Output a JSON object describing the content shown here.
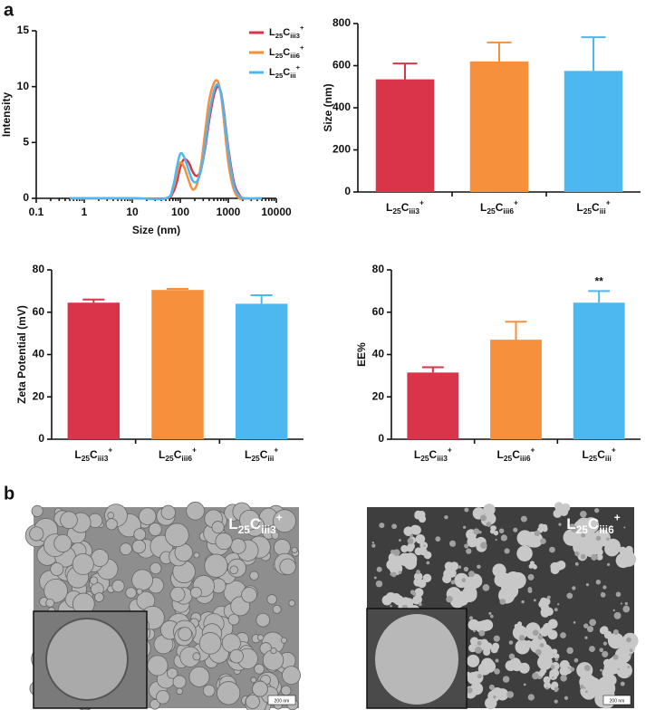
{
  "panel_labels": [
    "a",
    "b"
  ],
  "chart_data": [
    {
      "type": "line",
      "x_label": "Size (nm)",
      "y_label": "Intensity",
      "log_x": true,
      "x": [
        0.5,
        10,
        50,
        70,
        85,
        100,
        120,
        150,
        180,
        220,
        270,
        330,
        400,
        500,
        600,
        700,
        800,
        1000,
        1300,
        1700,
        2200,
        5000
      ],
      "xlim": [
        0.1,
        10000
      ],
      "xticks": [
        0.1,
        1,
        10,
        100,
        1000,
        10000
      ],
      "ylim": [
        0,
        15
      ],
      "yticks": [
        0,
        5,
        10,
        15
      ],
      "legend": "upper right",
      "series": [
        {
          "name": "L25Ciii3+",
          "color": "#d9344a",
          "values": [
            0,
            0,
            0,
            0.5,
            1.5,
            2.8,
            3.5,
            3.2,
            2.4,
            2.0,
            2.6,
            4.5,
            7.0,
            9.2,
            10.0,
            9.5,
            8.0,
            4.5,
            1.5,
            0.3,
            0,
            0
          ]
        },
        {
          "name": "L25Ciii6+",
          "color": "#f7903d",
          "values": [
            0,
            0,
            0,
            0.8,
            2.2,
            3.2,
            2.8,
            1.6,
            0.8,
            1.2,
            3.0,
            6.0,
            8.8,
            10.3,
            10.5,
            9.3,
            7.2,
            3.2,
            0.8,
            0,
            0,
            0
          ]
        },
        {
          "name": "L25Ciii+",
          "color": "#4db8ef",
          "values": [
            0,
            0,
            0,
            1.0,
            2.8,
            4.0,
            3.7,
            2.5,
            1.6,
            1.5,
            2.5,
            4.8,
            7.5,
            9.6,
            10.2,
            9.4,
            7.8,
            4.2,
            1.2,
            0.2,
            0,
            0
          ]
        }
      ]
    },
    {
      "type": "bar",
      "y_label": "Size (nm)",
      "categories": [
        "L25Ciii3+",
        "L25Ciii6+",
        "L25Ciii+"
      ],
      "values": [
        535,
        620,
        575
      ],
      "errors": [
        75,
        90,
        160
      ],
      "colors": [
        "#d9344a",
        "#f7903d",
        "#4db8ef"
      ],
      "ylim": [
        0,
        800
      ],
      "yticks": [
        0,
        200,
        400,
        600,
        800
      ]
    },
    {
      "type": "bar",
      "y_label": "Zeta Potential (mV)",
      "categories": [
        "L25Ciii3+",
        "L25Ciii6+",
        "L25Ciii+"
      ],
      "values": [
        64.5,
        70.5,
        64
      ],
      "errors": [
        1.5,
        0.5,
        4
      ],
      "colors": [
        "#d9344a",
        "#f7903d",
        "#4db8ef"
      ],
      "ylim": [
        0,
        80
      ],
      "yticks": [
        0,
        20,
        40,
        60,
        80
      ]
    },
    {
      "type": "bar",
      "y_label": "EE%",
      "categories": [
        "L25Ciii3+",
        "L25Ciii6+",
        "L25Ciii+"
      ],
      "values": [
        31.5,
        47,
        64.5
      ],
      "errors": [
        2.5,
        8.5,
        5.5
      ],
      "colors": [
        "#d9344a",
        "#f7903d",
        "#4db8ef"
      ],
      "ylim": [
        0,
        80
      ],
      "yticks": [
        0,
        20,
        40,
        60,
        80
      ],
      "annotations": [
        {
          "text": "**",
          "category": "L25Ciii+"
        }
      ]
    }
  ],
  "micrographs": [
    {
      "label": "L25Ciii3+",
      "scale_bar": "200 nm"
    },
    {
      "label": "L25Ciii6+",
      "scale_bar": "200 nm"
    }
  ]
}
